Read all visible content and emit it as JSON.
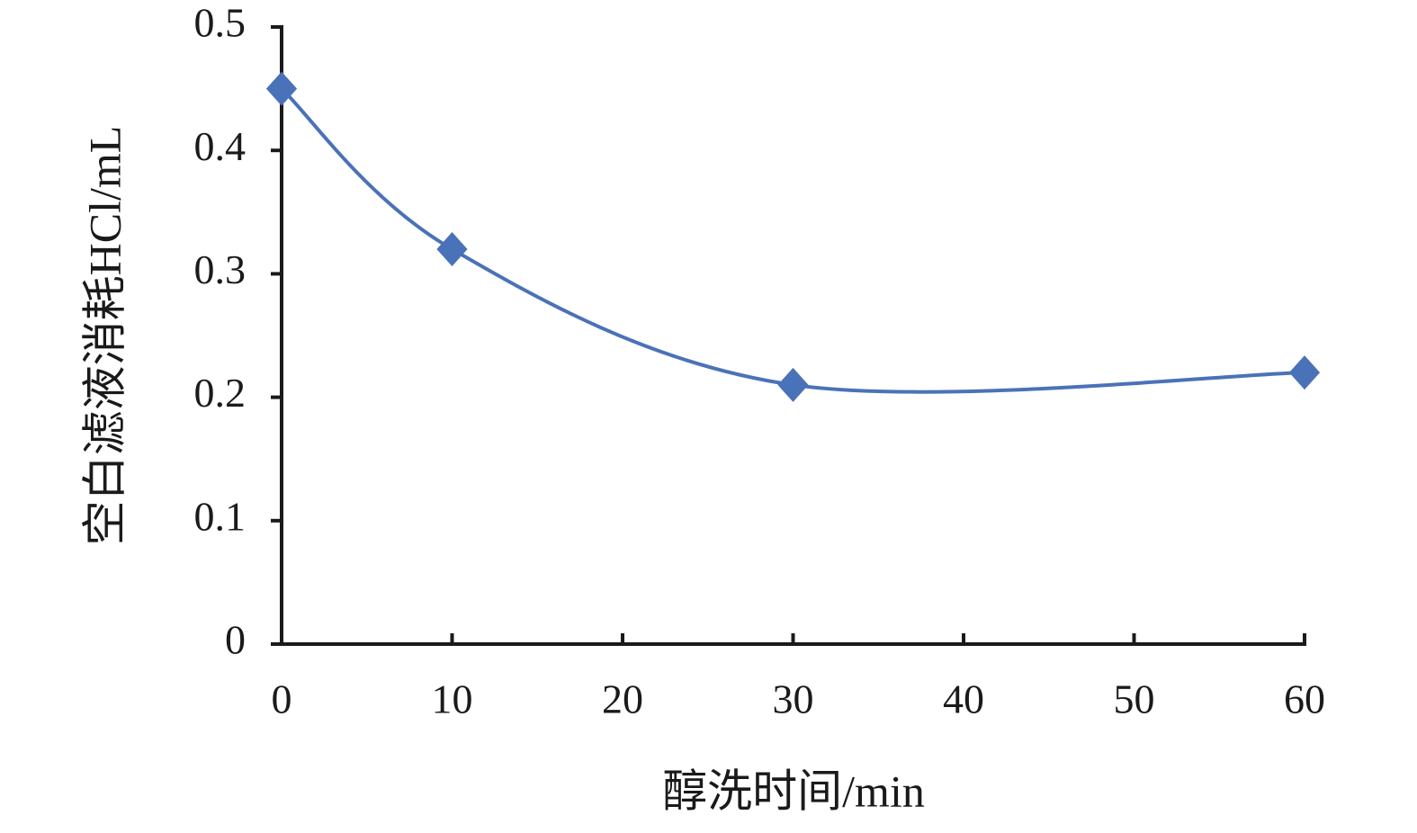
{
  "chart_data": {
    "type": "line",
    "x_label": "醇洗时间/min",
    "y_label": "空白滤液消耗HCl/mL",
    "x": [
      0,
      10,
      30,
      60
    ],
    "series": [
      {
        "name": "HCl",
        "color": "#4a72b8",
        "values": [
          0.45,
          0.32,
          0.21,
          0.22
        ]
      }
    ],
    "xlim": [
      0,
      60
    ],
    "xticks": [
      0,
      10,
      20,
      30,
      40,
      50,
      60
    ],
    "ylim": [
      0,
      0.5
    ],
    "yticks": [
      0,
      0.1,
      0.2,
      0.3,
      0.4,
      0.5
    ],
    "marker": "diamond",
    "smooth": true,
    "grid": false
  }
}
